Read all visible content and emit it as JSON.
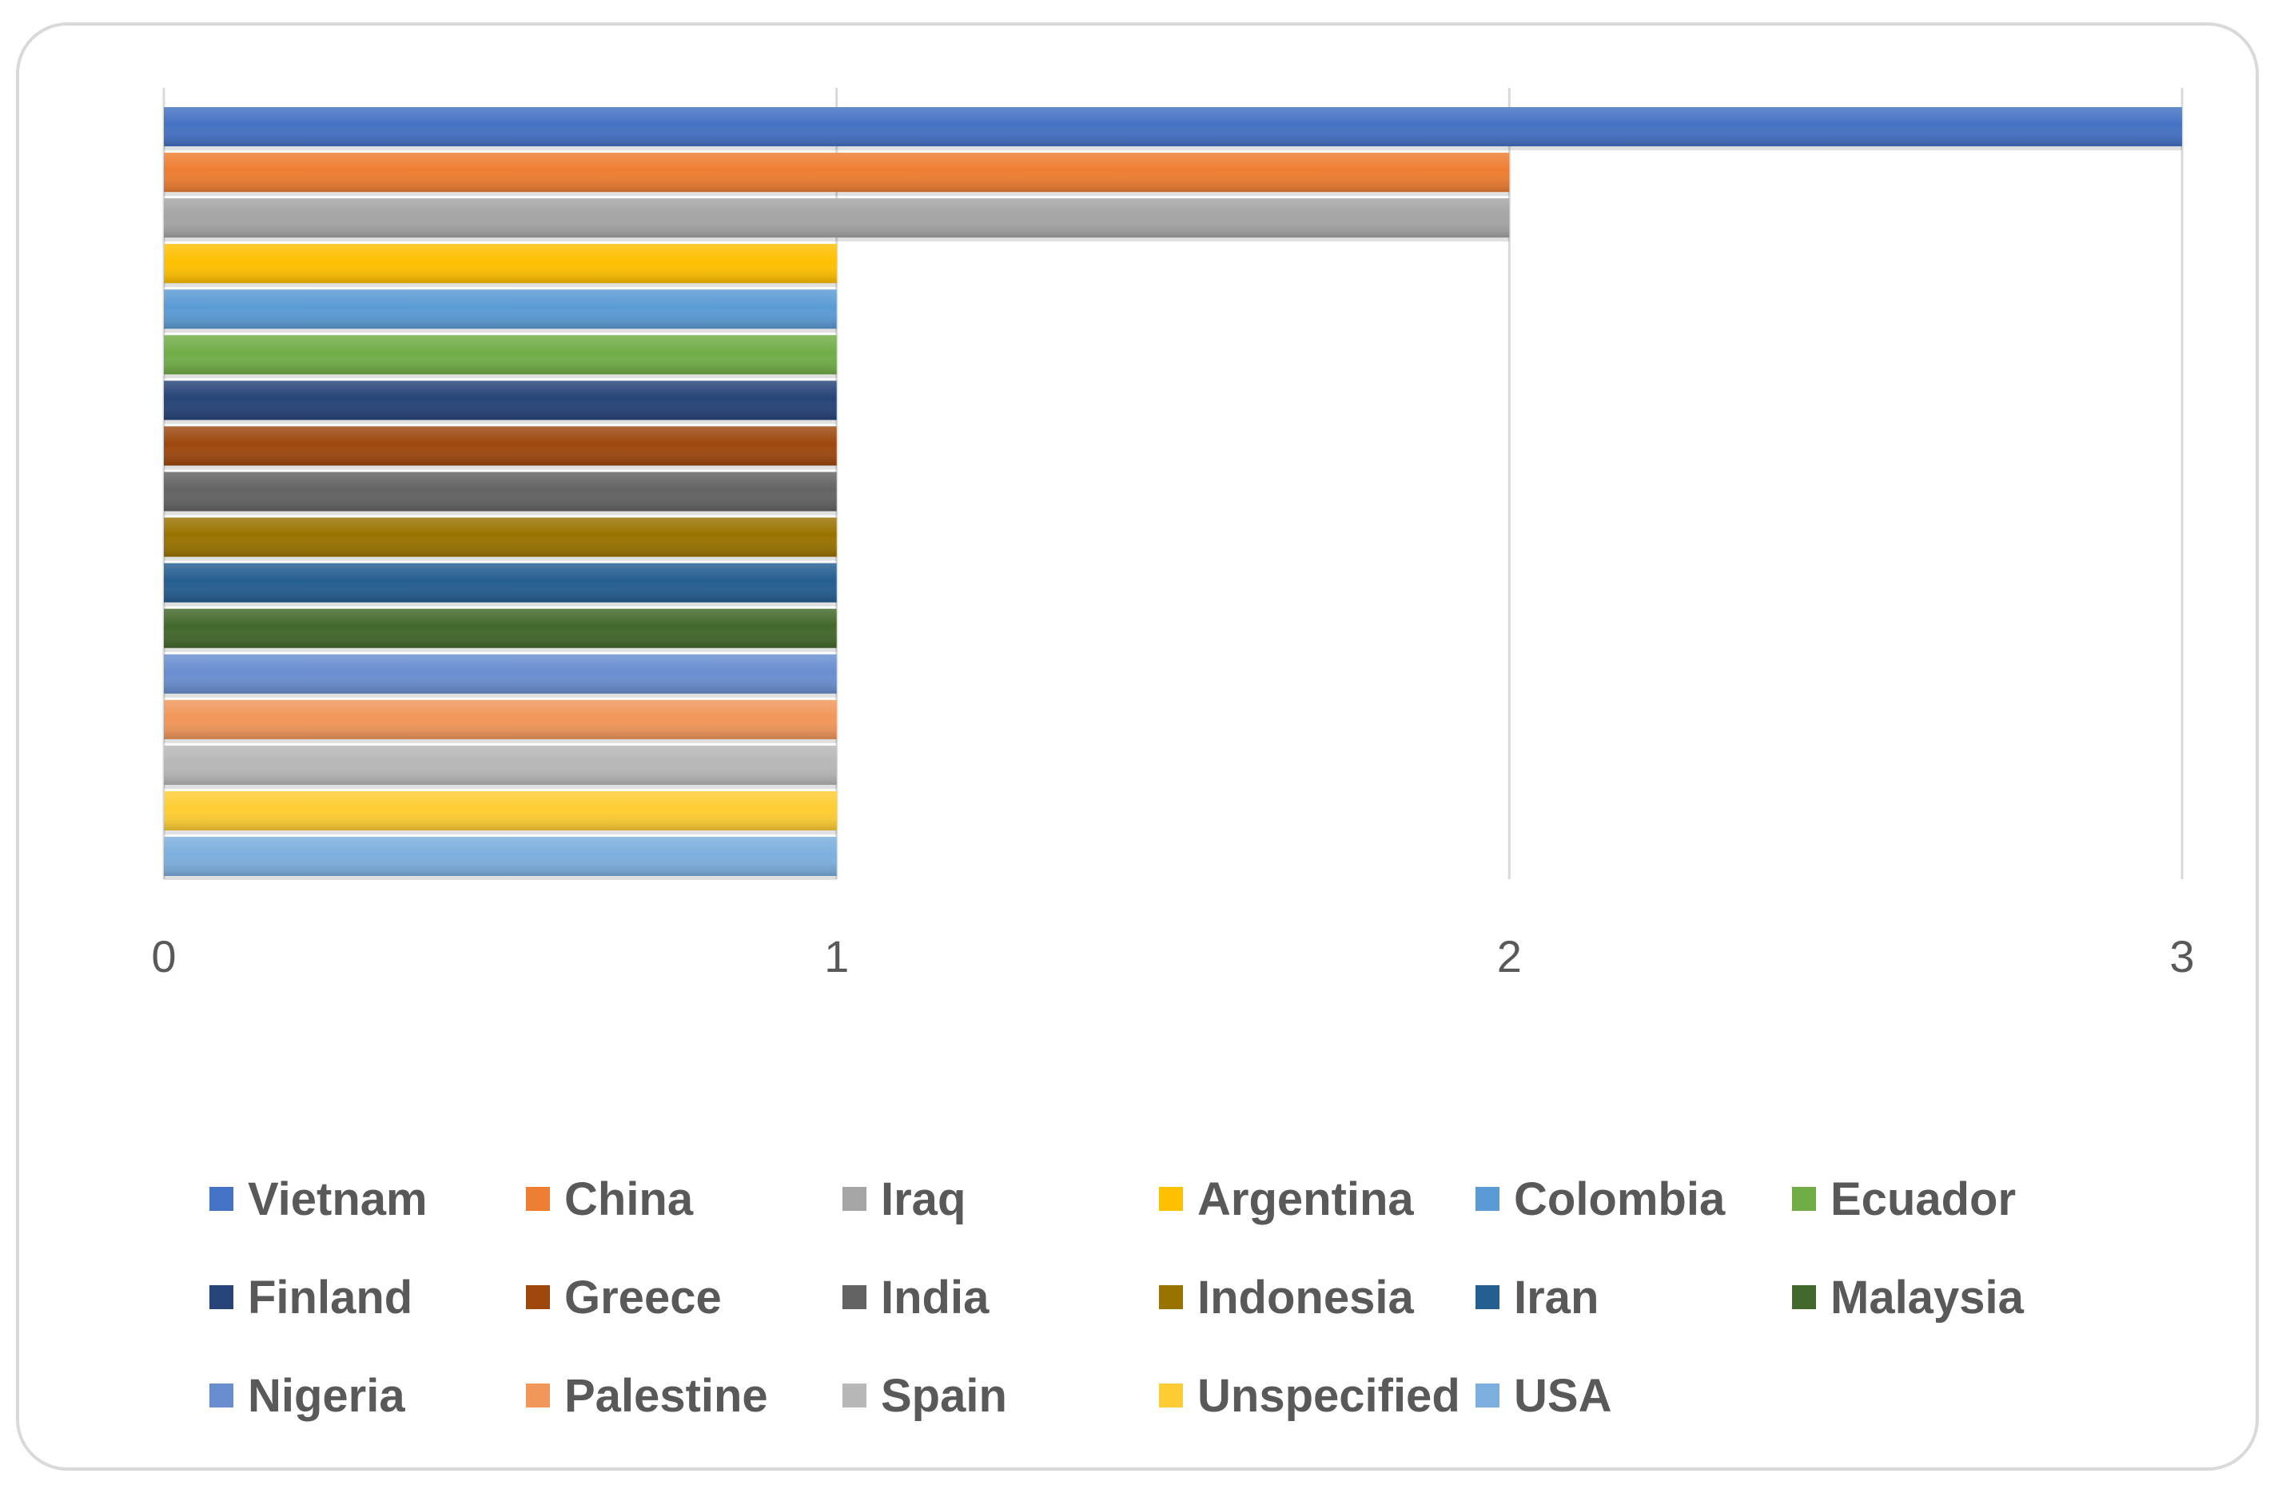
{
  "chart_data": {
    "type": "bar",
    "orientation": "horizontal",
    "categories": [
      "Vietnam",
      "China",
      "Iraq",
      "Argentina",
      "Colombia",
      "Ecuador",
      "Finland",
      "Greece",
      "India",
      "Indonesia",
      "Iran",
      "Malaysia",
      "Nigeria",
      "Palestine",
      "Spain",
      "Unspecified",
      "USA"
    ],
    "series": [
      {
        "name": "Vietnam",
        "value": 3,
        "color": "#4472C4"
      },
      {
        "name": "China",
        "value": 2,
        "color": "#ED7D31"
      },
      {
        "name": "Iraq",
        "value": 2,
        "color": "#A5A5A5"
      },
      {
        "name": "Argentina",
        "value": 1,
        "color": "#FFC000"
      },
      {
        "name": "Colombia",
        "value": 1,
        "color": "#5B9BD5"
      },
      {
        "name": "Ecuador",
        "value": 1,
        "color": "#70AD47"
      },
      {
        "name": "Finland",
        "value": 1,
        "color": "#264478"
      },
      {
        "name": "Greece",
        "value": 1,
        "color": "#9E480E"
      },
      {
        "name": "India",
        "value": 1,
        "color": "#636363"
      },
      {
        "name": "Indonesia",
        "value": 1,
        "color": "#997300"
      },
      {
        "name": "Iran",
        "value": 1,
        "color": "#255E91"
      },
      {
        "name": "Malaysia",
        "value": 1,
        "color": "#43682B"
      },
      {
        "name": "Nigeria",
        "value": 1,
        "color": "#698ED0"
      },
      {
        "name": "Palestine",
        "value": 1,
        "color": "#F1975A"
      },
      {
        "name": "Spain",
        "value": 1,
        "color": "#B7B7B7"
      },
      {
        "name": "Unspecified",
        "value": 1,
        "color": "#FFCD33"
      },
      {
        "name": "USA",
        "value": 1,
        "color": "#7CAFDD"
      }
    ],
    "x_ticks": [
      "0",
      "1",
      "2",
      "3"
    ],
    "xlim": [
      0,
      3
    ],
    "grid": "vertical",
    "legend_position": "bottom",
    "legend_columns": 6
  }
}
